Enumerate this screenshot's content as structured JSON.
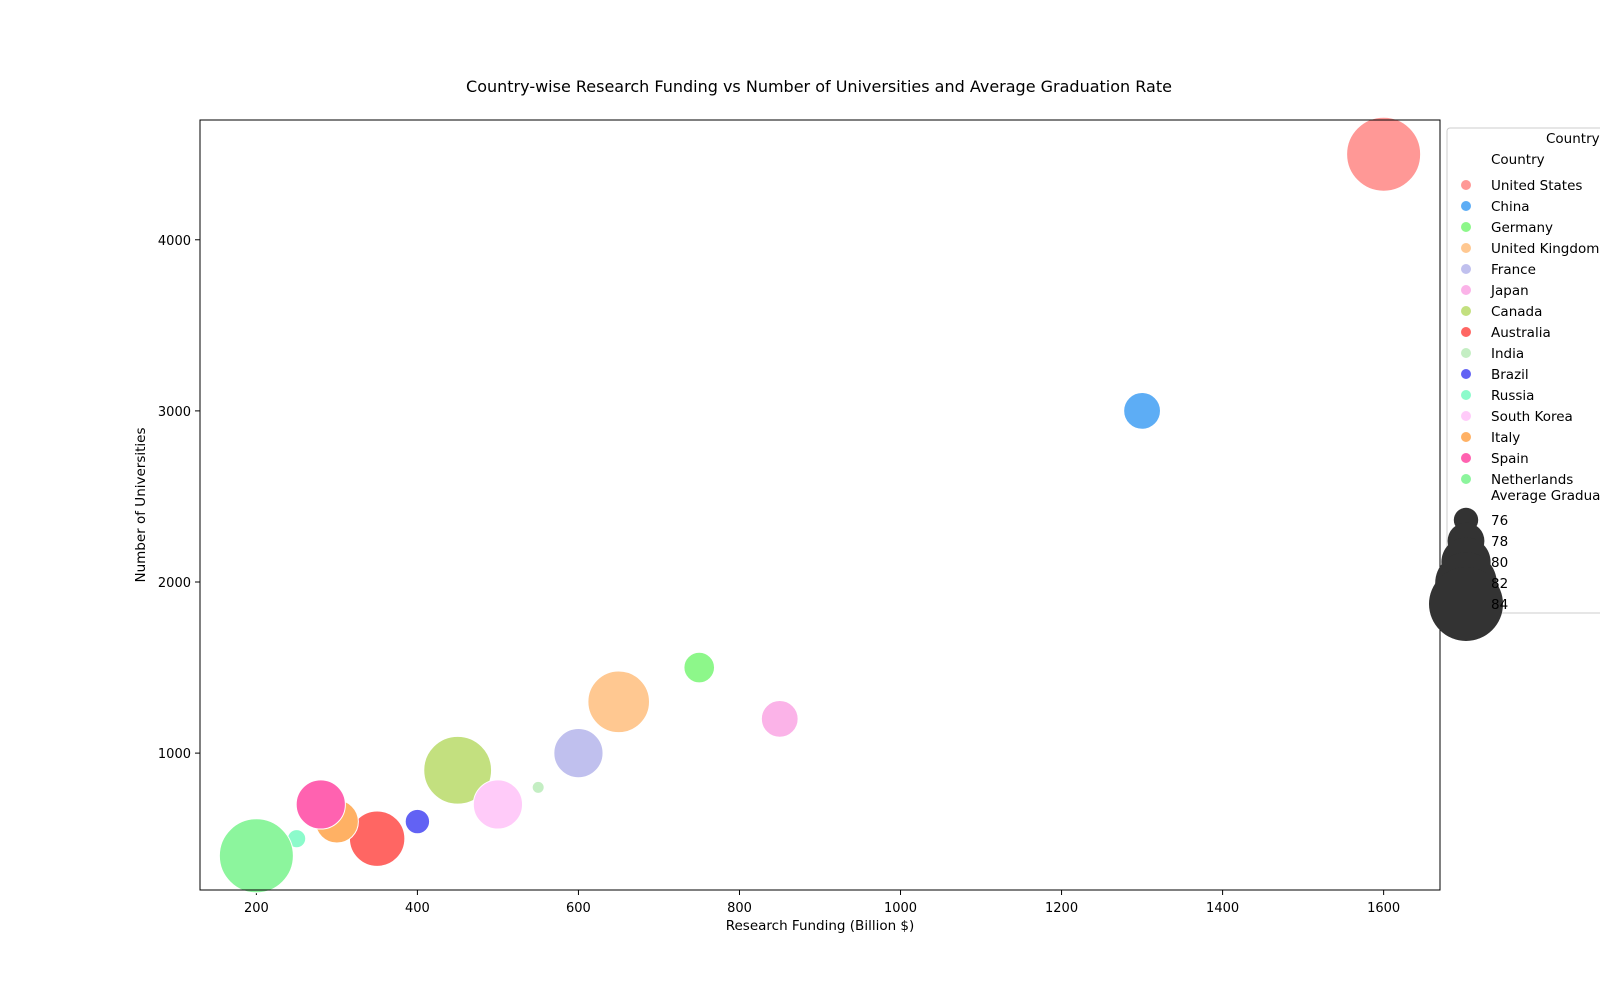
{
  "chart_data": {
    "type": "scatter",
    "title": "Country-wise Research Funding vs Number of Universities and Average Graduation Rate",
    "xlabel": "Research Funding (Billion $)",
    "ylabel": "Number of Universities",
    "xlim": [
      130,
      1670
    ],
    "ylim": [
      200,
      4700
    ],
    "xticks": [
      200,
      400,
      600,
      800,
      1000,
      1200,
      1400,
      1600
    ],
    "yticks": [
      1000,
      2000,
      3000,
      4000
    ],
    "grid": false,
    "legend_position": "right, outside plot (clipped)",
    "legend_title": "Country",
    "legend_country_header": "Country",
    "legend_size_header": "Average Gradua",
    "size_legend": [
      {
        "label": "76",
        "value": 76
      },
      {
        "label": "78",
        "value": 78
      },
      {
        "label": "80",
        "value": 80
      },
      {
        "label": "82",
        "value": 82
      },
      {
        "label": "84",
        "value": 84
      }
    ],
    "size_legend_color": "#333333",
    "points": [
      {
        "country": "United States",
        "x": 1600,
        "y": 4500,
        "grad_rate": 84,
        "color": "#ff9896"
      },
      {
        "country": "China",
        "x": 1300,
        "y": 3000,
        "grad_rate": 78,
        "color": "#5dadf5"
      },
      {
        "country": "Germany",
        "x": 750,
        "y": 1500,
        "grad_rate": 77,
        "color": "#8df78a"
      },
      {
        "country": "United Kingdom",
        "x": 650,
        "y": 1300,
        "grad_rate": 82,
        "color": "#ffc891"
      },
      {
        "country": "France",
        "x": 600,
        "y": 1000,
        "grad_rate": 80,
        "color": "#c0c0ee"
      },
      {
        "country": "Japan",
        "x": 850,
        "y": 1200,
        "grad_rate": 78,
        "color": "#fbb3e8"
      },
      {
        "country": "Canada",
        "x": 450,
        "y": 900,
        "grad_rate": 83,
        "color": "#c3e07f"
      },
      {
        "country": "Australia",
        "x": 350,
        "y": 500,
        "grad_rate": 81,
        "color": "#ff6663"
      },
      {
        "country": "India",
        "x": 550,
        "y": 800,
        "grad_rate": 74,
        "color": "#c4eec3"
      },
      {
        "country": "Brazil",
        "x": 400,
        "y": 600,
        "grad_rate": 76,
        "color": "#6262f4"
      },
      {
        "country": "Russia",
        "x": 250,
        "y": 500,
        "grad_rate": 75,
        "color": "#8cfbcb"
      },
      {
        "country": "South Korea",
        "x": 500,
        "y": 700,
        "grad_rate": 80,
        "color": "#ffcbf9"
      },
      {
        "country": "Italy",
        "x": 300,
        "y": 600,
        "grad_rate": 79,
        "color": "#ffb164"
      },
      {
        "country": "Spain",
        "x": 280,
        "y": 700,
        "grad_rate": 80,
        "color": "#ff62b0"
      },
      {
        "country": "Netherlands",
        "x": 200,
        "y": 400,
        "grad_rate": 84,
        "color": "#8cf59d"
      }
    ]
  }
}
